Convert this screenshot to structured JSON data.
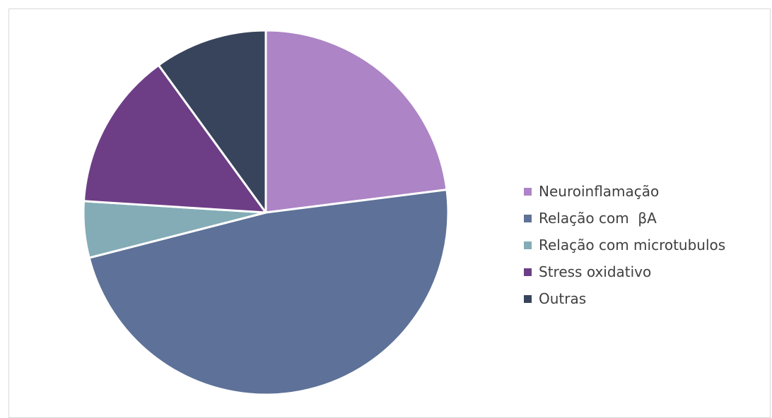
{
  "chart_data": {
    "type": "pie",
    "title": "",
    "legend_position": "right",
    "slices": [
      {
        "label": "Neuroinflamação",
        "value": 23,
        "color": "#AD84C6"
      },
      {
        "label": "Relação com  βA",
        "value": 48,
        "color": "#5E7198"
      },
      {
        "label": "Relação com microtubulos",
        "value": 5,
        "color": "#84ACB6"
      },
      {
        "label": "Stress oxidativo",
        "value": 14,
        "color": "#6D3E86"
      },
      {
        "label": "Outras",
        "value": 10,
        "color": "#38445B"
      }
    ]
  }
}
